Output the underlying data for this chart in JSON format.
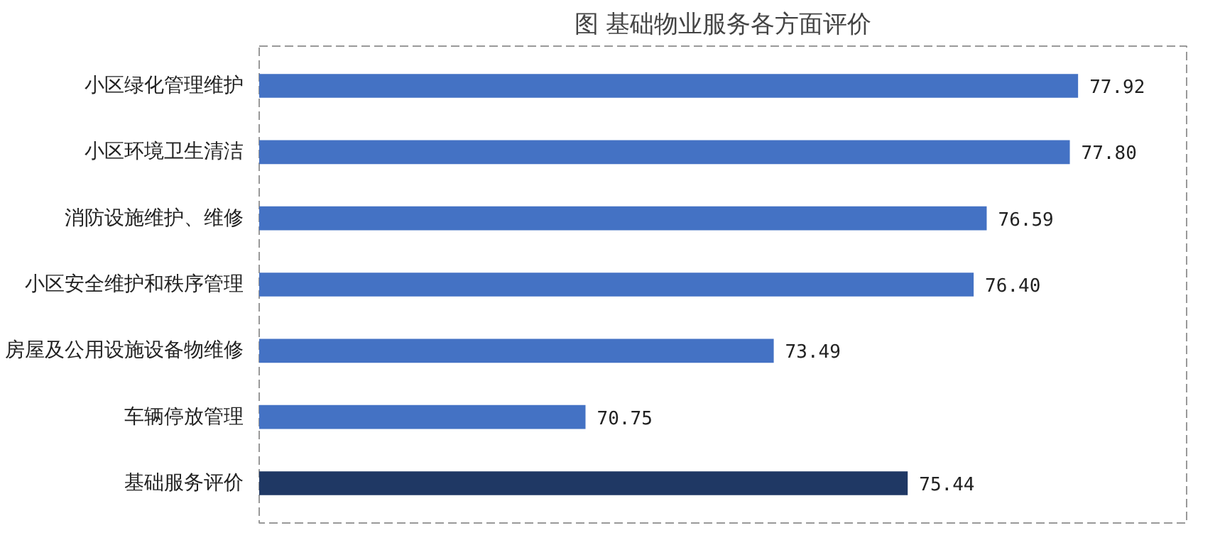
{
  "chart_data": {
    "type": "bar",
    "orientation": "horizontal",
    "title": "图 基础物业服务各方面评价",
    "categories": [
      "小区绿化管理维护",
      "小区环境卫生清洁",
      "消防设施维护、维修",
      "小区安全维护和秩序管理",
      "房屋及公用设施设备物维修",
      "车辆停放管理",
      "基础服务评价"
    ],
    "values": [
      77.92,
      77.8,
      76.59,
      76.4,
      73.49,
      70.75,
      75.44
    ],
    "colors": [
      "#4472c4",
      "#4472c4",
      "#4472c4",
      "#4472c4",
      "#4472c4",
      "#4472c4",
      "#1f3864"
    ],
    "value_labels": [
      "77.92",
      "77.80",
      "76.59",
      "76.40",
      "73.49",
      "70.75",
      "75.44"
    ],
    "xlim": [
      66,
      79.5
    ],
    "grid": false,
    "tick_labels": "y"
  }
}
